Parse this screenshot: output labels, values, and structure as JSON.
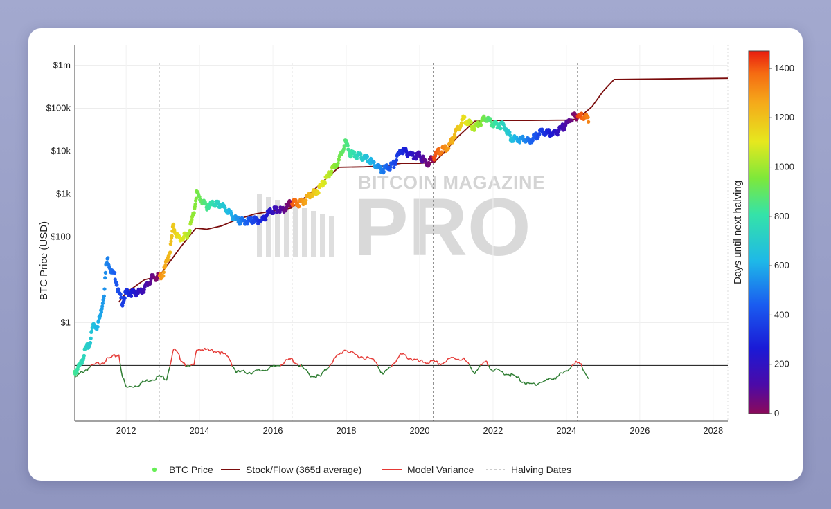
{
  "watermark": {
    "line1": "BITCOIN MAGAZINE",
    "line2": "PRO"
  },
  "colors": {
    "stock_flow": "#7a0c0c",
    "variance_positive": "#e53935",
    "variance_negative": "#2e7d32",
    "halving": "#888888",
    "legend_btc": "#66ee55"
  },
  "chart_data": {
    "type": "scatter",
    "title": "",
    "xlabel": "",
    "ylabel": "BTC Price (USD)",
    "y_scale": "log",
    "xlim": [
      2010.6,
      2028.4
    ],
    "ylim": [
      0.005,
      3000000
    ],
    "x_ticks": [
      2012,
      2014,
      2016,
      2018,
      2020,
      2022,
      2024,
      2026,
      2028
    ],
    "x_tick_labels": [
      "2012",
      "2014",
      "2016",
      "2018",
      "2020",
      "2022",
      "2024",
      "2026",
      "2028"
    ],
    "y_ticks": [
      1,
      100,
      1000,
      10000,
      100000,
      1000000
    ],
    "y_tick_labels": [
      "$1",
      "$100",
      "$1k",
      "$10k",
      "$100k",
      "$1m"
    ],
    "grid": true,
    "legend_position": "bottom",
    "halving_dates": [
      2012.9,
      2016.52,
      2020.37,
      2024.3
    ],
    "colorbar": {
      "label": "Days until next halving",
      "min": 0,
      "max": 1470,
      "ticks": [
        0,
        200,
        400,
        600,
        800,
        1000,
        1200,
        1400
      ],
      "tick_labels": [
        "0",
        "200",
        "400",
        "600",
        "800",
        "1000",
        "1200",
        "1400"
      ]
    },
    "legend": [
      {
        "name": "BTC Price",
        "kind": "marker"
      },
      {
        "name": "Stock/Flow (365d average)",
        "kind": "line"
      },
      {
        "name": "Model Variance",
        "kind": "line"
      },
      {
        "name": "Halving Dates",
        "kind": "dash"
      }
    ],
    "series": [
      {
        "name": "BTC Price",
        "points": [
          [
            2010.6,
            0.07
          ],
          [
            2010.75,
            0.1
          ],
          [
            2010.9,
            0.25
          ],
          [
            2011.0,
            0.3
          ],
          [
            2011.1,
            0.9
          ],
          [
            2011.2,
            0.8
          ],
          [
            2011.3,
            1.5
          ],
          [
            2011.4,
            5
          ],
          [
            2011.45,
            20
          ],
          [
            2011.5,
            30
          ],
          [
            2011.6,
            15
          ],
          [
            2011.7,
            12
          ],
          [
            2011.8,
            5
          ],
          [
            2011.9,
            3
          ],
          [
            2012.0,
            5
          ],
          [
            2012.2,
            5
          ],
          [
            2012.4,
            5.2
          ],
          [
            2012.6,
            8
          ],
          [
            2012.7,
            11
          ],
          [
            2012.9,
            12
          ],
          [
            2013.0,
            13
          ],
          [
            2013.2,
            50
          ],
          [
            2013.28,
            180
          ],
          [
            2013.4,
            100
          ],
          [
            2013.5,
            90
          ],
          [
            2013.7,
            120
          ],
          [
            2013.85,
            400
          ],
          [
            2013.92,
            1100
          ],
          [
            2014.0,
            800
          ],
          [
            2014.2,
            500
          ],
          [
            2014.4,
            600
          ],
          [
            2014.6,
            550
          ],
          [
            2014.8,
            380
          ],
          [
            2015.0,
            250
          ],
          [
            2015.2,
            230
          ],
          [
            2015.5,
            250
          ],
          [
            2015.7,
            240
          ],
          [
            2015.9,
            380
          ],
          [
            2016.0,
            420
          ],
          [
            2016.3,
            420
          ],
          [
            2016.5,
            650
          ],
          [
            2016.7,
            600
          ],
          [
            2016.9,
            750
          ],
          [
            2017.0,
            1000
          ],
          [
            2017.2,
            1100
          ],
          [
            2017.4,
            2000
          ],
          [
            2017.6,
            3500
          ],
          [
            2017.8,
            6000
          ],
          [
            2017.97,
            17000
          ],
          [
            2018.1,
            9000
          ],
          [
            2018.3,
            8000
          ],
          [
            2018.6,
            6500
          ],
          [
            2018.9,
            4000
          ],
          [
            2019.0,
            3700
          ],
          [
            2019.3,
            5000
          ],
          [
            2019.5,
            11000
          ],
          [
            2019.8,
            8000
          ],
          [
            2020.0,
            8000
          ],
          [
            2020.2,
            5000
          ],
          [
            2020.5,
            9500
          ],
          [
            2020.8,
            13000
          ],
          [
            2021.0,
            30000
          ],
          [
            2021.2,
            58000
          ],
          [
            2021.5,
            35000
          ],
          [
            2021.8,
            60000
          ],
          [
            2022.0,
            43000
          ],
          [
            2022.3,
            40000
          ],
          [
            2022.5,
            20000
          ],
          [
            2022.8,
            19000
          ],
          [
            2023.0,
            17000
          ],
          [
            2023.3,
            28000
          ],
          [
            2023.7,
            26000
          ],
          [
            2024.0,
            43000
          ],
          [
            2024.2,
            67000
          ],
          [
            2024.4,
            65000
          ],
          [
            2024.6,
            58000
          ]
        ]
      },
      {
        "name": "Stock/Flow (365d average)",
        "points": [
          [
            2011.8,
            3
          ],
          [
            2012.0,
            5
          ],
          [
            2012.5,
            10
          ],
          [
            2012.9,
            12
          ],
          [
            2013.5,
            60
          ],
          [
            2013.9,
            160
          ],
          [
            2014.2,
            150
          ],
          [
            2014.6,
            180
          ],
          [
            2015.0,
            250
          ],
          [
            2015.5,
            340
          ],
          [
            2016.0,
            400
          ],
          [
            2016.5,
            470
          ],
          [
            2017.0,
            1000
          ],
          [
            2017.5,
            2500
          ],
          [
            2017.8,
            4200
          ],
          [
            2018.5,
            4300
          ],
          [
            2019.0,
            4500
          ],
          [
            2019.5,
            5200
          ],
          [
            2020.0,
            5200
          ],
          [
            2020.4,
            5500
          ],
          [
            2020.7,
            10000
          ],
          [
            2021.0,
            20000
          ],
          [
            2021.5,
            50000
          ],
          [
            2022.0,
            52000
          ],
          [
            2023.0,
            52000
          ],
          [
            2024.0,
            53000
          ],
          [
            2024.3,
            56000
          ],
          [
            2024.7,
            110000
          ],
          [
            2025.0,
            250000
          ],
          [
            2025.3,
            470000
          ],
          [
            2028.4,
            500000
          ]
        ]
      },
      {
        "name": "Model Variance",
        "points": [
          [
            2010.6,
            0.05
          ],
          [
            2010.8,
            0.07
          ],
          [
            2011.0,
            0.09
          ],
          [
            2011.8,
            0.18
          ],
          [
            2011.9,
            0.055
          ],
          [
            2012.0,
            0.03
          ],
          [
            2012.3,
            0.035
          ],
          [
            2012.6,
            0.045
          ],
          [
            2012.9,
            0.055
          ],
          [
            2013.1,
            0.05
          ],
          [
            2013.3,
            0.24
          ],
          [
            2013.5,
            0.14
          ],
          [
            2013.7,
            0.09
          ],
          [
            2013.85,
            0.1
          ],
          [
            2013.92,
            0.26
          ],
          [
            2014.2,
            0.22
          ],
          [
            2014.5,
            0.22
          ],
          [
            2014.8,
            0.15
          ],
          [
            2015.0,
            0.07
          ],
          [
            2015.5,
            0.07
          ],
          [
            2016.0,
            0.09
          ],
          [
            2016.5,
            0.14
          ],
          [
            2016.8,
            0.09
          ],
          [
            2017.0,
            0.06
          ],
          [
            2017.3,
            0.055
          ],
          [
            2017.6,
            0.12
          ],
          [
            2017.97,
            0.24
          ],
          [
            2018.2,
            0.18
          ],
          [
            2018.8,
            0.13
          ],
          [
            2019.0,
            0.06
          ],
          [
            2019.5,
            0.18
          ],
          [
            2020.0,
            0.12
          ],
          [
            2020.3,
            0.12
          ],
          [
            2020.6,
            0.11
          ],
          [
            2020.9,
            0.15
          ],
          [
            2021.2,
            0.14
          ],
          [
            2021.5,
            0.07
          ],
          [
            2021.8,
            0.12
          ],
          [
            2022.0,
            0.08
          ],
          [
            2022.5,
            0.06
          ],
          [
            2023.0,
            0.035
          ],
          [
            2023.5,
            0.045
          ],
          [
            2024.0,
            0.07
          ],
          [
            2024.2,
            0.12
          ],
          [
            2024.4,
            0.1
          ],
          [
            2024.6,
            0.05
          ]
        ]
      }
    ]
  },
  "legend_items": {
    "btc": "BTC Price",
    "sf": "Stock/Flow (365d average)",
    "mv": "Model Variance",
    "hd": "Halving Dates"
  }
}
